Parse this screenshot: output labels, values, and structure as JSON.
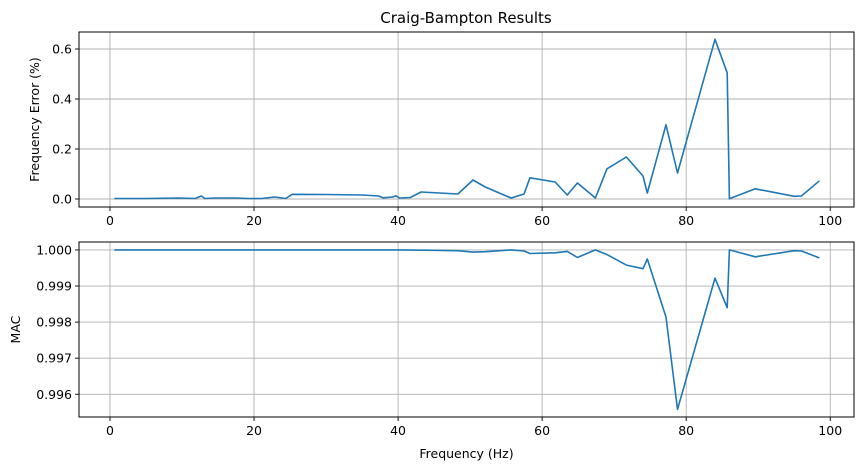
{
  "figure": {
    "title": "Craig-Bampton Results",
    "line_color": "#1f77b4",
    "grid_color": "#b0b0b0"
  },
  "chart_data": [
    {
      "type": "line",
      "title": "Craig-Bampton Results",
      "xlabel": "",
      "ylabel": "Frequency Error (%)",
      "xlim": [
        -4.3,
        103.3
      ],
      "ylim": [
        -0.032,
        0.668
      ],
      "xticks": [
        "0",
        "20",
        "40",
        "60",
        "80",
        "100"
      ],
      "yticks": [
        "0.0",
        "0.2",
        "0.4",
        "0.6"
      ],
      "grid": true,
      "legend": null,
      "series": [
        {
          "name": "Frequency Error",
          "x": [
            0.6,
            5,
            9.5,
            11.8,
            12.7,
            13.2,
            14.5,
            17.5,
            19.3,
            21,
            22.9,
            24.4,
            25.3,
            30,
            35,
            37.3,
            37.9,
            39.3,
            39.7,
            40.2,
            41.7,
            43.2,
            48.3,
            50.4,
            52.1,
            55.7,
            57.5,
            58.3,
            61.8,
            63.5,
            64.9,
            67.4,
            69.0,
            71.7,
            74.0,
            74.6,
            77.2,
            78.8,
            84.0,
            85.7,
            86.0,
            89.6,
            95.0,
            96.0,
            98.5
          ],
          "y": [
            0.002,
            0.002,
            0.004,
            0.002,
            0.012,
            0.002,
            0.004,
            0.004,
            0.002,
            0.002,
            0.008,
            0.002,
            0.019,
            0.018,
            0.016,
            0.012,
            0.005,
            0.008,
            0.013,
            0.004,
            0.006,
            0.028,
            0.02,
            0.076,
            0.048,
            0.004,
            0.02,
            0.085,
            0.068,
            0.016,
            0.064,
            0.004,
            0.121,
            0.168,
            0.092,
            0.024,
            0.297,
            0.104,
            0.639,
            0.505,
            0.001,
            0.041,
            0.011,
            0.012,
            0.073
          ]
        }
      ]
    },
    {
      "type": "line",
      "title": "",
      "xlabel": "Frequency (Hz)",
      "ylabel": "MAC",
      "xlim": [
        -4.3,
        103.3
      ],
      "ylim": [
        0.99537,
        1.00022
      ],
      "xticks": [
        "0",
        "20",
        "40",
        "60",
        "80",
        "100"
      ],
      "yticks": [
        "0.996",
        "0.997",
        "0.998",
        "0.999",
        "1.000"
      ],
      "grid": true,
      "legend": null,
      "series": [
        {
          "name": "MAC",
          "x": [
            0.6,
            20,
            40,
            45,
            48.3,
            50.4,
            52.1,
            55.7,
            57.5,
            58.3,
            61.8,
            63.5,
            64.9,
            67.4,
            69.0,
            71.7,
            74.0,
            74.6,
            77.2,
            78.8,
            84.0,
            85.7,
            86.0,
            89.6,
            95.0,
            96.0,
            98.5
          ],
          "y": [
            1.0,
            1.0,
            1.0,
            0.99999,
            0.99998,
            0.99994,
            0.99995,
            1.0,
            0.99997,
            0.9999,
            0.99992,
            0.99996,
            0.99979,
            1.0,
            0.99987,
            0.99958,
            0.99948,
            0.99975,
            0.99814,
            0.99558,
            0.99922,
            0.9984,
            1.0,
            0.99981,
            0.99998,
            0.99997,
            0.99978
          ]
        }
      ]
    }
  ]
}
